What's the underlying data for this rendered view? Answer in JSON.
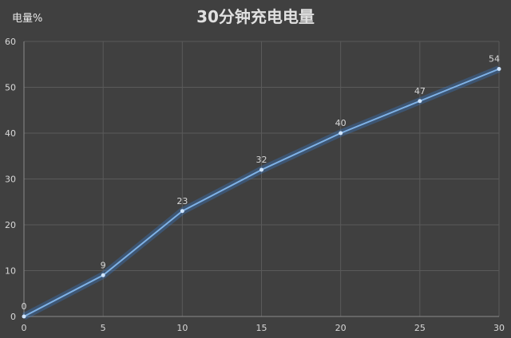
{
  "chart_data": {
    "type": "line",
    "title": "30分钟充电电量",
    "ylabel": "电量%",
    "xlabel": "",
    "x": [
      0,
      5,
      10,
      15,
      20,
      25,
      30
    ],
    "values": [
      0,
      9,
      23,
      32,
      40,
      47,
      54
    ],
    "xlim": [
      0,
      30
    ],
    "ylim": [
      0,
      60
    ],
    "xticks": [
      0,
      5,
      10,
      15,
      20,
      25,
      30
    ],
    "yticks": [
      0,
      10,
      20,
      30,
      40,
      50,
      60
    ],
    "grid": true,
    "data_labels": true,
    "colors": {
      "background": "#404040",
      "line": "#7fb2e6",
      "glow": "#3a7fd0",
      "grid": "#5a5a5a",
      "text": "#d8d8d8"
    }
  }
}
